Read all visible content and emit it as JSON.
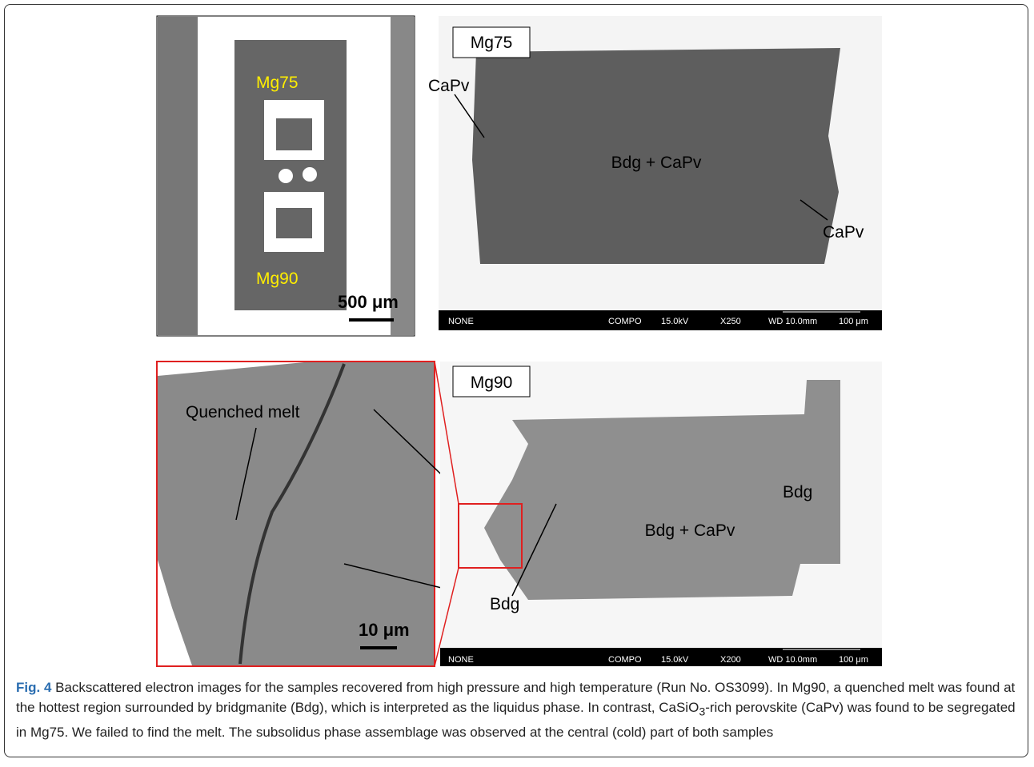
{
  "panel_a": {
    "label_top": "Mg75",
    "label_bottom": "Mg90",
    "scale_bar": "500 μm"
  },
  "panel_b": {
    "sample": "Mg75",
    "labels": [
      "CaPv",
      "Bdg + CaPv",
      "CaPv"
    ],
    "info_bar": [
      "NONE",
      "COMPO",
      "15.0kV",
      "X250",
      "WD 10.0mm",
      "100 μm"
    ]
  },
  "panel_c": {
    "labels": [
      "Quenched melt"
    ],
    "scale_bar": "10 μm"
  },
  "panel_d": {
    "sample": "Mg90",
    "labels": [
      "Bdg",
      "Bdg + CaPv",
      "Bdg"
    ],
    "info_bar": [
      "NONE",
      "COMPO",
      "15.0kV",
      "X200",
      "WD 10.0mm",
      "100 μm"
    ]
  },
  "caption": {
    "label": "Fig. 4",
    "text_before": " Backscattered electron images for the samples recovered from high pressure and high temperature (Run No. OS3099). In Mg90, a quenched melt was found at the hottest region surrounded by bridgmanite (Bdg), which is interpreted as the liquidus phase. In contrast, CaSiO",
    "subscript": "3",
    "text_after": "-rich perovskite (CaPv) was found to be segregated in Mg75. We failed to find the melt. The subsolidus phase assemblage was observed at the central (cold) part of both samples"
  }
}
